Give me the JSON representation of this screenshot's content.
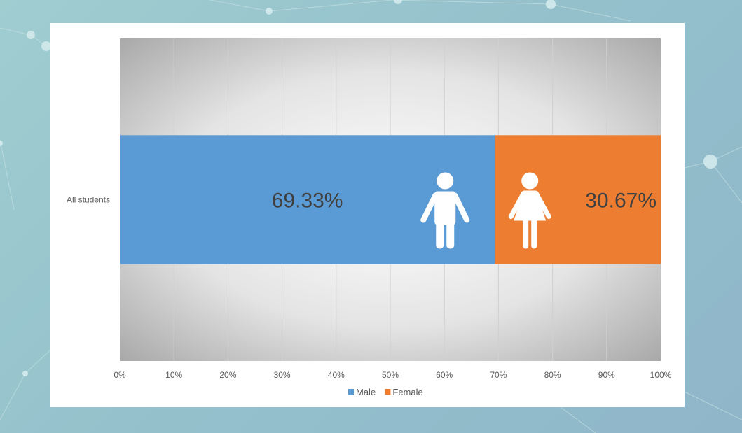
{
  "chart_data": {
    "type": "bar",
    "orientation": "horizontal",
    "stacked": "percent",
    "categories": [
      "All students"
    ],
    "series": [
      {
        "name": "Male",
        "values": [
          69.33
        ],
        "color": "#5b9bd5",
        "label": "69.33%",
        "icon": "male-person-icon"
      },
      {
        "name": "Female",
        "values": [
          30.67
        ],
        "color": "#ed7d31",
        "label": "30.67%",
        "icon": "female-person-icon"
      }
    ],
    "xlim": [
      0,
      100
    ],
    "xticks": [
      "0%",
      "10%",
      "20%",
      "30%",
      "40%",
      "50%",
      "60%",
      "70%",
      "80%",
      "90%",
      "100%"
    ],
    "grid": true,
    "legend_position": "bottom",
    "title": "",
    "xlabel": "",
    "ylabel": ""
  }
}
